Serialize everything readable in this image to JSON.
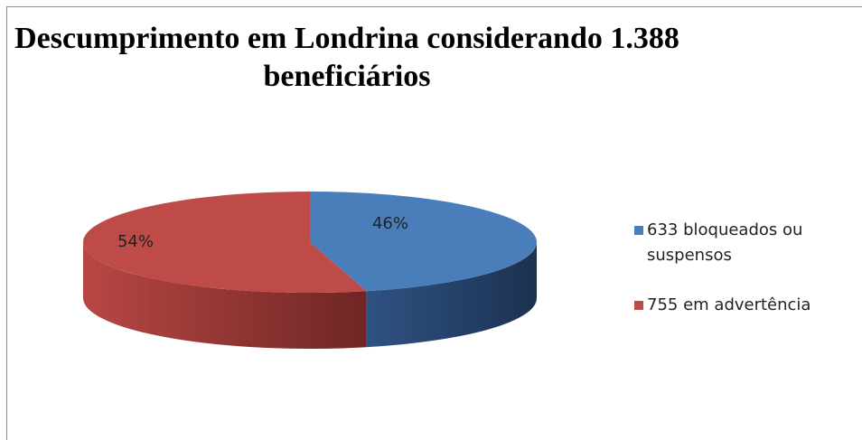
{
  "chart_data": {
    "type": "pie",
    "title": "Descumprimento em Londrina considerando 1.388 beneficiários",
    "categories": [
      "633 bloqueados ou suspensos",
      "755 em advertência"
    ],
    "values": [
      46,
      54
    ],
    "value_labels": [
      "46%",
      "54%"
    ],
    "colors": [
      "#4a7ebb",
      "#be4b48"
    ],
    "legend": "right"
  }
}
